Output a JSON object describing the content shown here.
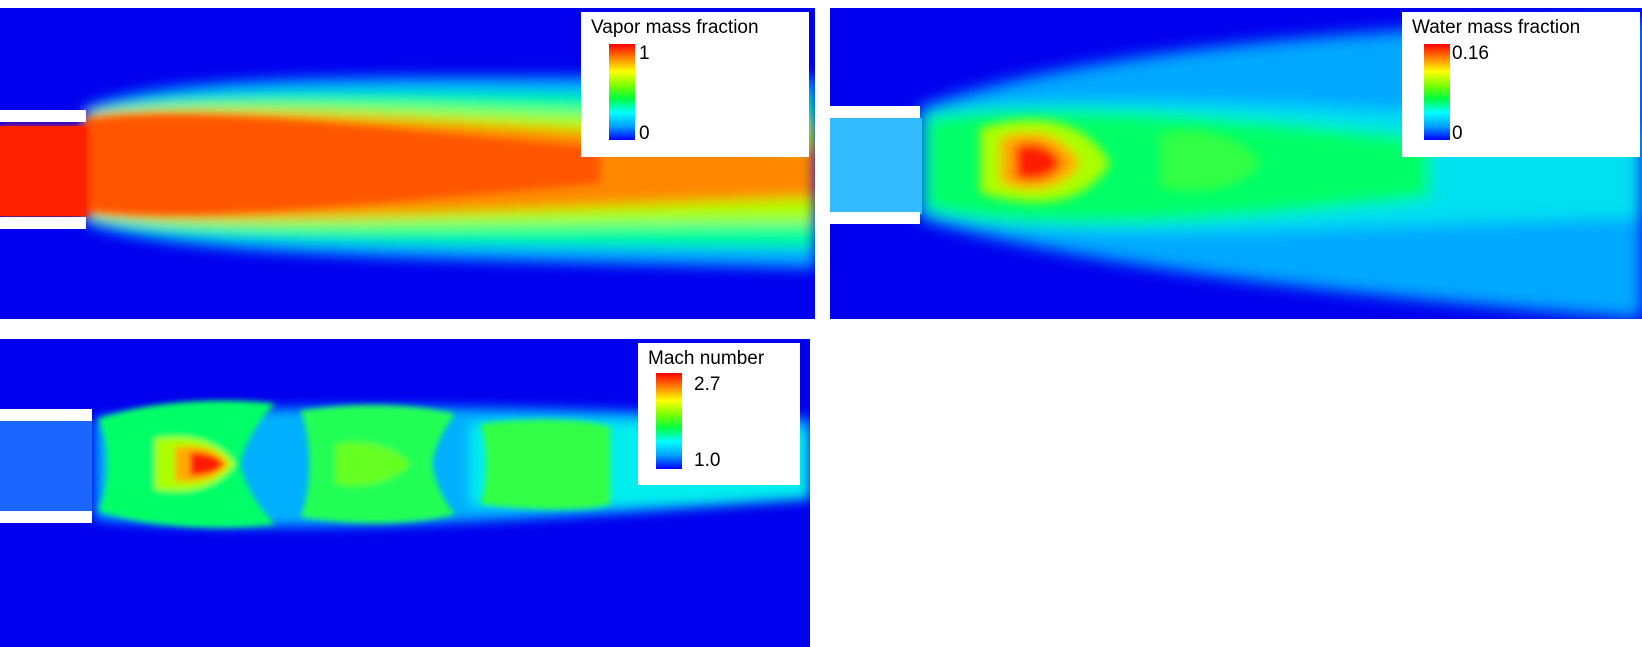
{
  "panels": [
    {
      "id": "vapor",
      "legend": {
        "title": "Vapor mass fraction",
        "max": "1",
        "min": "0"
      }
    },
    {
      "id": "water",
      "legend": {
        "title": "Water mass fraction",
        "max": "0.16",
        "min": "0"
      }
    },
    {
      "id": "mach",
      "legend": {
        "title": "Mach number",
        "max": "2.7",
        "min": "1.0"
      }
    }
  ],
  "colormap": [
    "#0000ff",
    "#00a0ff",
    "#00ffff",
    "#00ff40",
    "#80ff00",
    "#ffff00",
    "#ff8000",
    "#ff0000"
  ]
}
